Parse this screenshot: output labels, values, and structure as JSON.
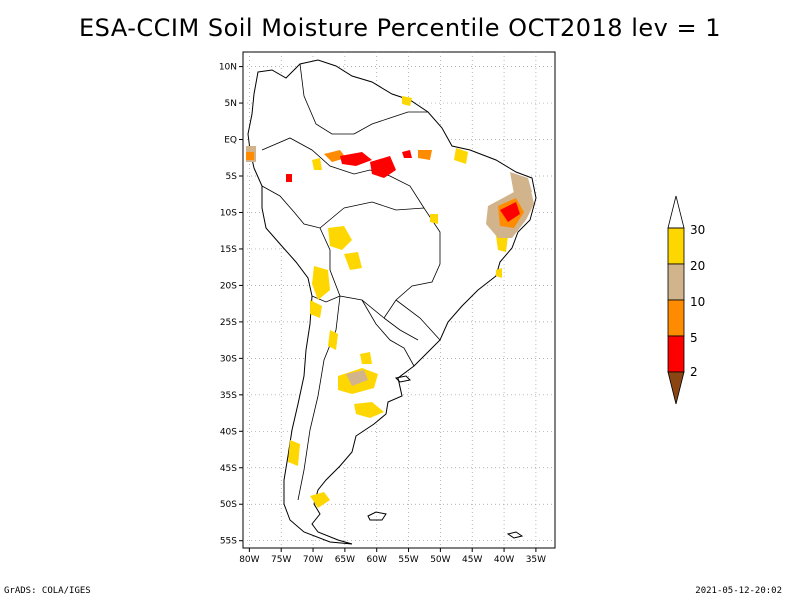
{
  "title": "ESA-CCIM Soil Moisture Percentile OCT2018 lev = 1",
  "footer": {
    "left": "GrADS: COLA/IGES",
    "right": "2021-05-12-20:02"
  },
  "map": {
    "lat_ticks": [
      "10N",
      "5N",
      "EQ",
      "5S",
      "10S",
      "15S",
      "20S",
      "25S",
      "30S",
      "35S",
      "40S",
      "45S",
      "50S",
      "55S"
    ],
    "lon_ticks": [
      "80W",
      "75W",
      "70W",
      "65W",
      "60W",
      "55W",
      "50W",
      "45W",
      "40W",
      "35W"
    ],
    "lat_values": [
      10,
      5,
      0,
      -5,
      -10,
      -15,
      -20,
      -25,
      -30,
      -35,
      -40,
      -45,
      -50,
      -55
    ],
    "lon_values": [
      -80,
      -75,
      -70,
      -65,
      -60,
      -55,
      -50,
      -45,
      -40,
      -35
    ],
    "lat_range": [
      -56,
      12
    ],
    "lon_range": [
      -81,
      -32
    ],
    "grid": true
  },
  "legend": {
    "levels": [
      "2",
      "5",
      "10",
      "20",
      "30"
    ],
    "colors": {
      "below_2": "#8B4513",
      "2_5": "#FF0000",
      "5_10": "#FF8C00",
      "10_20": "#D2B48C",
      "20_30": "#FFD700",
      "above_30": "#FFFFFF"
    }
  }
}
